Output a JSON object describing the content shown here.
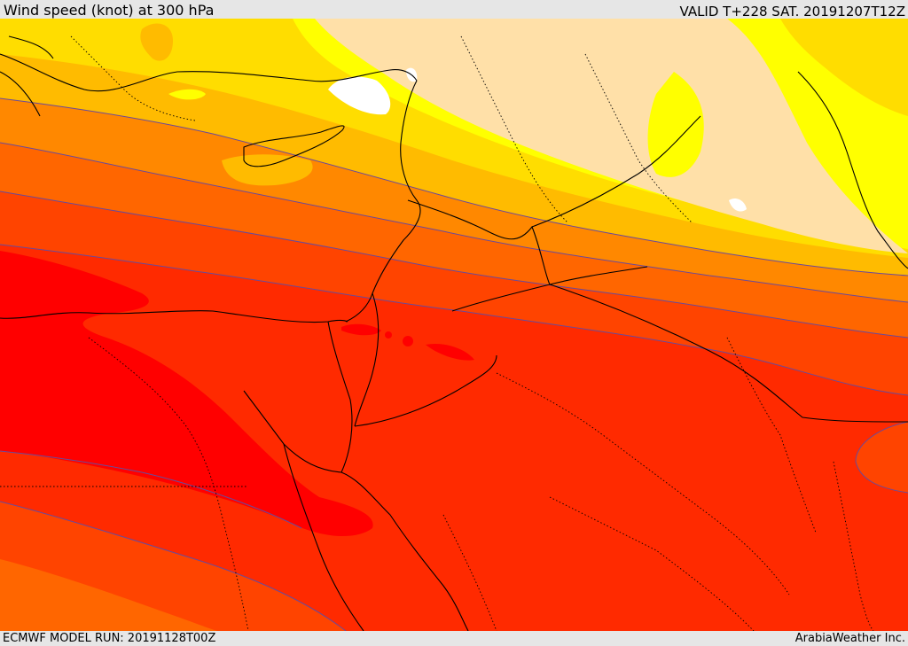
{
  "header": {
    "title": "Wind speed (knot) at 300 hPa",
    "valid_time": "VALID T+228 SAT. 20191207T12Z"
  },
  "footer": {
    "model_run": "ECMWF MODEL RUN: 20191128T00Z",
    "credit": "ArabiaWeather Inc."
  },
  "map": {
    "variable": "wind speed",
    "level": "300 hPa",
    "region": "Eastern Mediterranean / Middle East",
    "colors": {
      "weakest": "#ffffff",
      "band_light_peach": "#ffe0a8",
      "band_yellow": "#ffff00",
      "band_gold": "#ffdd00",
      "band_amber": "#ffbb00",
      "band_orange": "#ff8800",
      "band_dark_orange": "#ff6600",
      "band_red_orange": "#ff4400",
      "band_red": "#ff2a00",
      "band_core_red": "#ff0000",
      "coastline": "#000000",
      "contour_line": "#6a4a9a"
    }
  }
}
